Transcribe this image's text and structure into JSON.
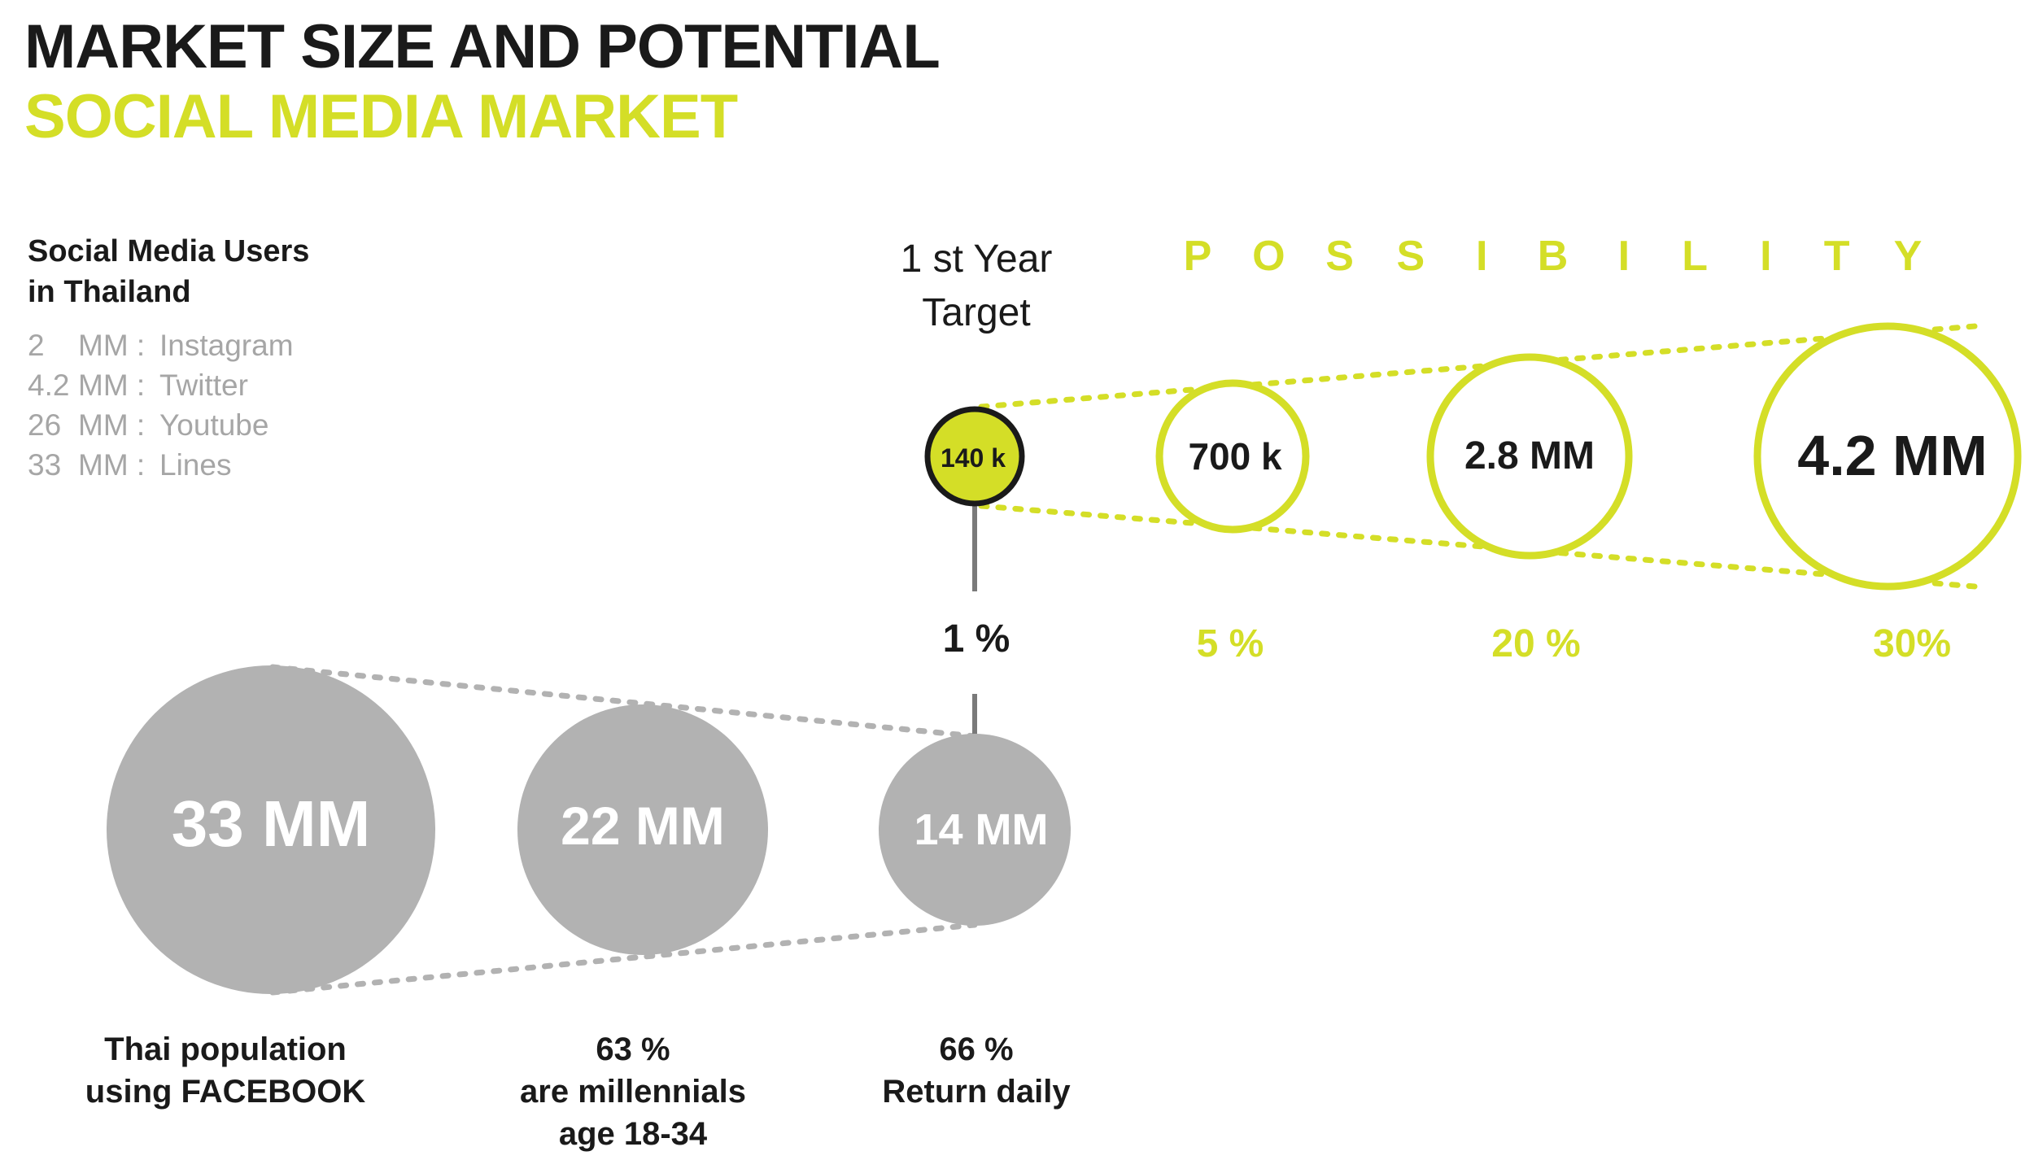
{
  "header": {
    "title": "MARKET SIZE AND POTENTIAL",
    "subtitle": "SOCIAL MEDIA MARKET"
  },
  "social_users": {
    "heading_line1": "Social Media Users",
    "heading_line2": "in Thailand",
    "items": [
      {
        "value": "2",
        "unit": "MM :",
        "platform": "Instagram"
      },
      {
        "value": "4.2",
        "unit": "MM :",
        "platform": "Twitter"
      },
      {
        "value": "26",
        "unit": "MM :",
        "platform": "Youtube"
      },
      {
        "value": "33",
        "unit": "MM :",
        "platform": "Lines"
      }
    ]
  },
  "target": {
    "label_line1": "1 st Year",
    "label_line2": "Target",
    "value": "140 k",
    "percent": "1 %"
  },
  "possibility": {
    "word": "POSSIBILITY",
    "circles": [
      {
        "value": "700 k",
        "percent": "5 %"
      },
      {
        "value": "2.8 MM",
        "percent": "20 %"
      },
      {
        "value": "4.2 MM",
        "percent": "30%"
      }
    ]
  },
  "funnel": [
    {
      "value": "33 MM",
      "caption_lines": [
        "Thai population",
        "using FACEBOOK"
      ]
    },
    {
      "value": "22 MM",
      "caption_lines": [
        "63 %",
        "are millennials",
        "age 18-34"
      ]
    },
    {
      "value": "14 MM",
      "caption_lines": [
        "66 %",
        "Return daily"
      ]
    }
  ],
  "colors": {
    "accent": "#d4de27",
    "grey": "#b2b2b2",
    "dark": "#1a1a1a",
    "light_text": "#a6a6a6"
  }
}
